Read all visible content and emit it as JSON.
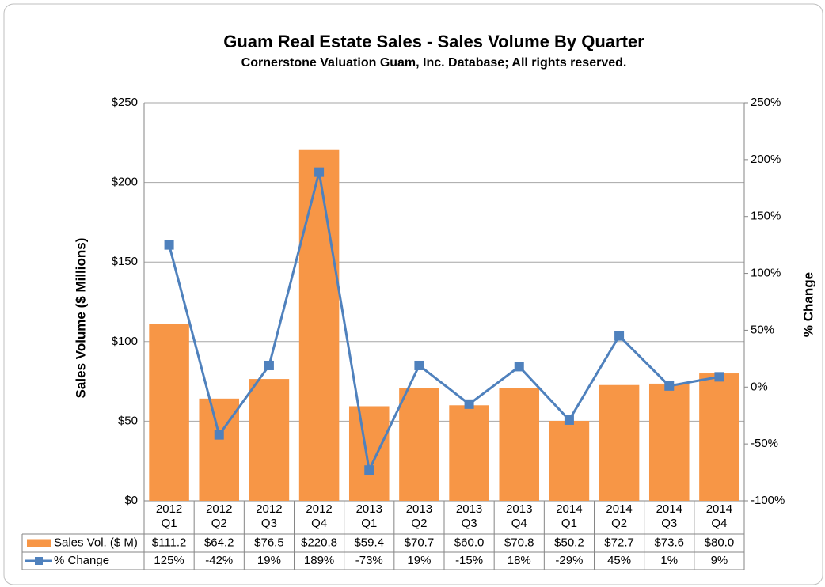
{
  "chart_data": {
    "type": "bar-line-table",
    "title": "Guam Real Estate Sales - Sales Volume By Quarter",
    "subtitle": "Cornerstone Valuation Guam, Inc. Database; All rights reserved.",
    "y_label": "Sales Volume ($ Millions)",
    "y2_label": "% Change",
    "categories": [
      "2012 Q1",
      "2012 Q2",
      "2012 Q3",
      "2012 Q4",
      "2013 Q1",
      "2013 Q2",
      "2013 Q3",
      "2013 Q4",
      "2014 Q1",
      "2014 Q2",
      "2014 Q3",
      "2014 Q4"
    ],
    "series": [
      {
        "name": "Sales Vol. ($ M)",
        "type": "bar",
        "color": "#f79646",
        "values": [
          111.2,
          64.2,
          76.5,
          220.8,
          59.4,
          70.7,
          60.0,
          70.8,
          50.2,
          72.7,
          73.6,
          80.0
        ],
        "value_labels": [
          "$111.2",
          "$64.2",
          "$76.5",
          "$220.8",
          "$59.4",
          "$70.7",
          "$60.0",
          "$70.8",
          "$50.2",
          "$72.7",
          "$73.6",
          "$80.0"
        ]
      },
      {
        "name": "% Change",
        "type": "line",
        "axis": "y2",
        "color": "#4f81bd",
        "values": [
          125,
          -42,
          19,
          189,
          -73,
          19,
          -15,
          18,
          -29,
          45,
          1,
          9
        ],
        "value_labels": [
          "125%",
          "-42%",
          "19%",
          "189%",
          "-73%",
          "19%",
          "-15%",
          "18%",
          "-29%",
          "45%",
          "1%",
          "9%"
        ]
      }
    ],
    "ylim": [
      0,
      250
    ],
    "yticks": [
      {
        "value": 0,
        "label": "$0"
      },
      {
        "value": 50,
        "label": "$50"
      },
      {
        "value": 100,
        "label": "$100"
      },
      {
        "value": 150,
        "label": "$150"
      },
      {
        "value": 200,
        "label": "$200"
      },
      {
        "value": 250,
        "label": "$250"
      }
    ],
    "y2lim": [
      -100,
      250
    ],
    "y2ticks": [
      {
        "value": -100,
        "label": "-100%"
      },
      {
        "value": -50,
        "label": "-50%"
      },
      {
        "value": 0,
        "label": "0%"
      },
      {
        "value": 50,
        "label": "50%"
      },
      {
        "value": 100,
        "label": "100%"
      },
      {
        "value": 150,
        "label": "150%"
      },
      {
        "value": 200,
        "label": "200%"
      },
      {
        "value": 250,
        "label": "250%"
      }
    ],
    "grid": true
  }
}
